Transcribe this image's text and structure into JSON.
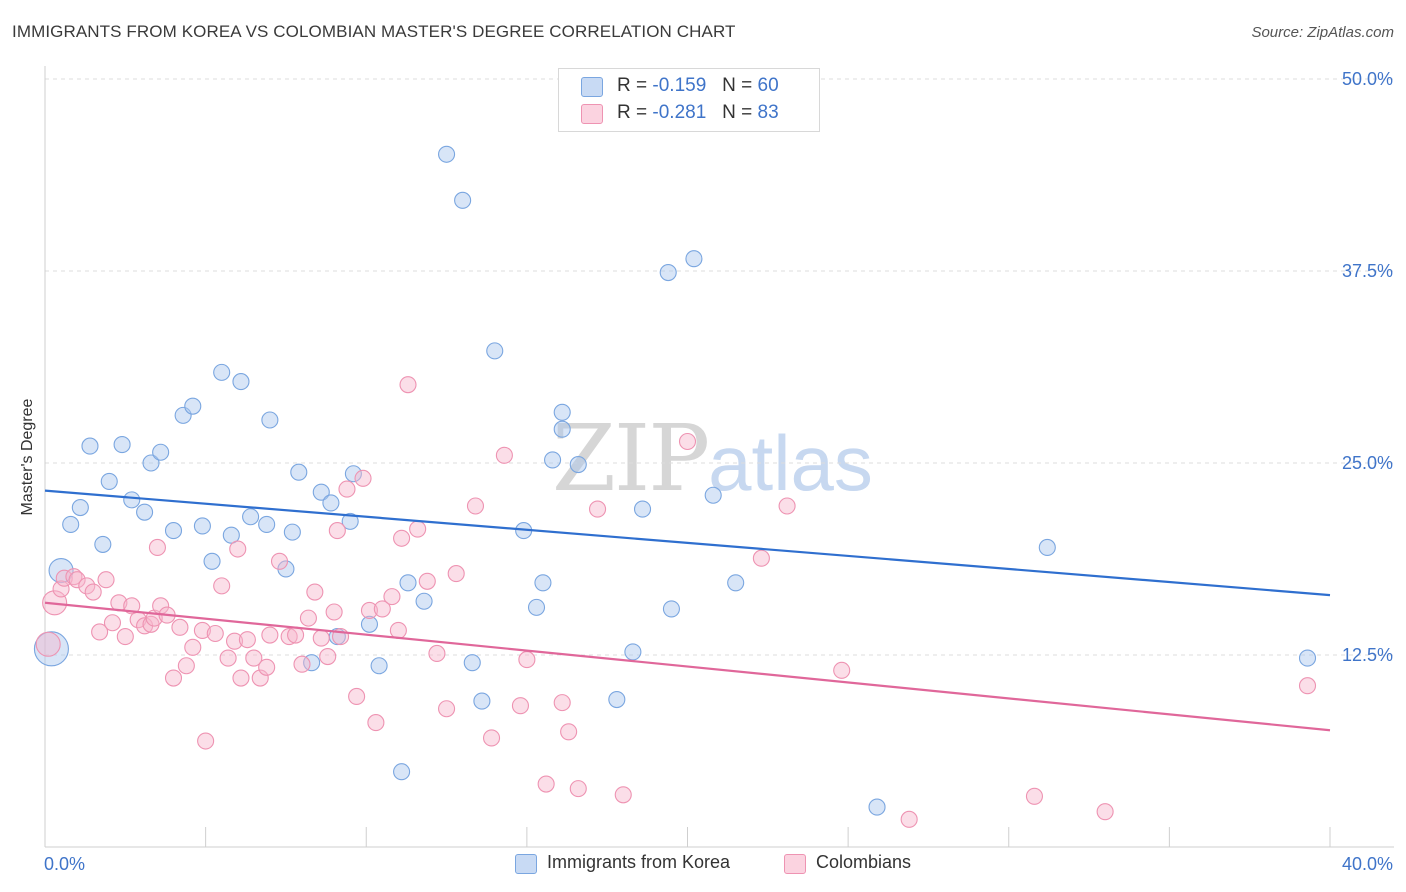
{
  "title": "IMMIGRANTS FROM KOREA VS COLOMBIAN MASTER'S DEGREE CORRELATION CHART",
  "source": "Source: ZipAtlas.com",
  "watermark": {
    "part1": "ZIP",
    "part2": "atlas"
  },
  "legend_top": [
    {
      "r_label": "R =",
      "r_value": "-0.159",
      "n_label": "N =",
      "n_value": "60",
      "color": "#a9c5ee"
    },
    {
      "r_label": "R =",
      "r_value": "-0.281",
      "n_label": "N =",
      "n_value": "83",
      "color": "#f6b6cb"
    }
  ],
  "legend_bottom": [
    {
      "label": "Immigrants from Korea",
      "color": "#a9c5ee"
    },
    {
      "label": "Colombians",
      "color": "#f6b6cb"
    }
  ],
  "chart_data": {
    "type": "scatter",
    "title": "IMMIGRANTS FROM KOREA VS COLOMBIAN MASTER'S DEGREE CORRELATION CHART",
    "xlabel": "",
    "ylabel": "Master's Degree",
    "xlim": [
      0,
      40
    ],
    "ylim": [
      0,
      50
    ],
    "x_tick_labels": [
      {
        "value": 0,
        "label": "0.0%"
      },
      {
        "value": 40,
        "label": "40.0%"
      }
    ],
    "y_tick_labels": [
      {
        "value": 12.5,
        "label": "12.5%"
      },
      {
        "value": 25,
        "label": "25.0%"
      },
      {
        "value": 37.5,
        "label": "37.5%"
      },
      {
        "value": 50,
        "label": "50.0%"
      }
    ],
    "grid": true,
    "legend_position": "bottom",
    "series": [
      {
        "name": "Immigrants from Korea",
        "color": "#7aa6e0",
        "fill": "#a9c5ee",
        "trend": {
          "x": [
            0,
            40
          ],
          "y": [
            23.2,
            16.4
          ],
          "color": "#2f6fcf"
        },
        "points": [
          [
            0.2,
            12.9,
            "l"
          ],
          [
            0.5,
            18.0,
            "m"
          ],
          [
            0.8,
            21.0
          ],
          [
            1.1,
            22.1
          ],
          [
            1.4,
            26.1
          ],
          [
            1.8,
            19.7
          ],
          [
            2.0,
            23.8
          ],
          [
            2.4,
            26.2
          ],
          [
            2.7,
            22.6
          ],
          [
            3.1,
            21.8
          ],
          [
            3.3,
            25.0
          ],
          [
            3.6,
            25.7
          ],
          [
            4.0,
            20.6
          ],
          [
            4.3,
            28.1
          ],
          [
            4.6,
            28.7
          ],
          [
            4.9,
            20.9
          ],
          [
            5.2,
            18.6
          ],
          [
            5.5,
            30.9
          ],
          [
            5.8,
            20.3
          ],
          [
            6.1,
            30.3
          ],
          [
            6.4,
            21.5
          ],
          [
            6.9,
            21.0
          ],
          [
            7.0,
            27.8
          ],
          [
            7.5,
            18.1
          ],
          [
            7.7,
            20.5
          ],
          [
            7.9,
            24.4
          ],
          [
            8.3,
            12.0
          ],
          [
            8.6,
            23.1
          ],
          [
            8.9,
            22.4
          ],
          [
            9.1,
            13.7
          ],
          [
            9.5,
            21.2
          ],
          [
            9.6,
            24.3
          ],
          [
            10.1,
            14.5
          ],
          [
            10.4,
            11.8
          ],
          [
            11.1,
            4.9
          ],
          [
            11.3,
            17.2
          ],
          [
            11.8,
            16.0
          ],
          [
            12.5,
            45.1
          ],
          [
            13.0,
            42.1
          ],
          [
            13.3,
            12.0
          ],
          [
            13.6,
            9.5
          ],
          [
            14.0,
            32.3
          ],
          [
            14.9,
            20.6
          ],
          [
            15.3,
            15.6
          ],
          [
            15.5,
            17.2
          ],
          [
            15.8,
            25.2
          ],
          [
            16.1,
            28.3
          ],
          [
            16.1,
            27.2
          ],
          [
            16.6,
            24.9
          ],
          [
            17.8,
            9.6
          ],
          [
            18.3,
            12.7
          ],
          [
            18.6,
            22.0
          ],
          [
            19.4,
            37.4
          ],
          [
            19.5,
            15.5
          ],
          [
            20.2,
            38.3
          ],
          [
            20.8,
            22.9
          ],
          [
            21.5,
            17.2
          ],
          [
            25.9,
            2.6
          ],
          [
            31.2,
            19.5
          ],
          [
            39.3,
            12.3
          ]
        ]
      },
      {
        "name": "Colombians",
        "color": "#ee93b2",
        "fill": "#f6b6cb",
        "trend": {
          "x": [
            0,
            40
          ],
          "y": [
            15.9,
            7.6
          ],
          "color": "#e0679a"
        },
        "points": [
          [
            0.1,
            13.2,
            "m"
          ],
          [
            0.3,
            15.9,
            "m"
          ],
          [
            0.5,
            16.8
          ],
          [
            0.6,
            17.5
          ],
          [
            0.9,
            17.6
          ],
          [
            1.0,
            17.4
          ],
          [
            1.3,
            17.0
          ],
          [
            1.5,
            16.6
          ],
          [
            1.7,
            14.0
          ],
          [
            1.9,
            17.4
          ],
          [
            2.1,
            14.6
          ],
          [
            2.3,
            15.9
          ],
          [
            2.5,
            13.7
          ],
          [
            2.7,
            15.7
          ],
          [
            2.9,
            14.8
          ],
          [
            3.1,
            14.4
          ],
          [
            3.3,
            14.5
          ],
          [
            3.4,
            14.9
          ],
          [
            3.6,
            15.7
          ],
          [
            3.8,
            15.1
          ],
          [
            4.0,
            11.0
          ],
          [
            4.2,
            14.3
          ],
          [
            4.4,
            11.8
          ],
          [
            4.6,
            13.0
          ],
          [
            4.9,
            14.1
          ],
          [
            5.0,
            6.9
          ],
          [
            5.3,
            13.9
          ],
          [
            5.5,
            17.0
          ],
          [
            5.7,
            12.3
          ],
          [
            5.9,
            13.4
          ],
          [
            6.1,
            11.0
          ],
          [
            6.3,
            13.5
          ],
          [
            6.5,
            12.3
          ],
          [
            6.7,
            11.0
          ],
          [
            6.9,
            11.7
          ],
          [
            7.0,
            13.8
          ],
          [
            7.3,
            18.6
          ],
          [
            7.6,
            13.7
          ],
          [
            7.8,
            13.8
          ],
          [
            8.0,
            11.9
          ],
          [
            8.2,
            14.9
          ],
          [
            8.4,
            16.6
          ],
          [
            8.6,
            13.6
          ],
          [
            8.8,
            12.4
          ],
          [
            9.0,
            15.3
          ],
          [
            9.2,
            13.7
          ],
          [
            9.4,
            23.3
          ],
          [
            9.7,
            9.8
          ],
          [
            9.9,
            24.0
          ],
          [
            10.1,
            15.4
          ],
          [
            10.3,
            8.1
          ],
          [
            10.5,
            15.5
          ],
          [
            10.8,
            16.3
          ],
          [
            11.0,
            14.1
          ],
          [
            11.3,
            30.1
          ],
          [
            11.6,
            20.7
          ],
          [
            11.9,
            17.3
          ],
          [
            12.2,
            12.6
          ],
          [
            12.5,
            9.0
          ],
          [
            12.8,
            17.8
          ],
          [
            13.4,
            22.2
          ],
          [
            13.9,
            7.1
          ],
          [
            14.3,
            25.5
          ],
          [
            14.8,
            9.2
          ],
          [
            15.0,
            12.2
          ],
          [
            15.6,
            4.1
          ],
          [
            16.1,
            9.4
          ],
          [
            16.3,
            7.5
          ],
          [
            16.6,
            3.8
          ],
          [
            17.2,
            22.0
          ],
          [
            18.0,
            3.4
          ],
          [
            20.0,
            26.4
          ],
          [
            22.3,
            18.8
          ],
          [
            23.1,
            22.2
          ],
          [
            24.8,
            11.5
          ],
          [
            26.9,
            1.8
          ],
          [
            30.8,
            3.3
          ],
          [
            33.0,
            2.3
          ],
          [
            39.3,
            10.5
          ],
          [
            11.1,
            20.1
          ],
          [
            9.1,
            20.6
          ],
          [
            6.0,
            19.4
          ],
          [
            3.5,
            19.5
          ]
        ]
      }
    ]
  }
}
